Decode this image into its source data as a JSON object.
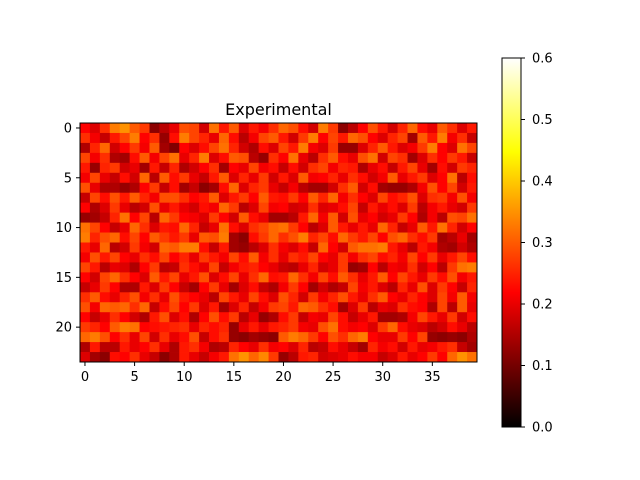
{
  "chart_data": {
    "type": "heatmap",
    "title": "Experimental",
    "rows": 24,
    "cols": 40,
    "x_ticks": [
      0,
      5,
      10,
      15,
      20,
      25,
      30,
      35
    ],
    "y_ticks": [
      0,
      5,
      10,
      15,
      20
    ],
    "colormap": "hot",
    "vmin": 0.0,
    "vmax": 0.6,
    "colorbar_ticks": [
      "0.0",
      "0.1",
      "0.2",
      "0.3",
      "0.4",
      "0.5",
      "0.6"
    ],
    "values": [
      [
        0.22,
        0.19,
        0.26,
        0.33,
        0.35,
        0.3,
        0.27,
        0.12,
        0.16,
        0.2,
        0.29,
        0.28,
        0.18,
        0.32,
        0.24,
        0.3,
        0.19,
        0.24,
        0.21,
        0.26,
        0.31,
        0.29,
        0.23,
        0.18,
        0.33,
        0.27,
        0.12,
        0.16,
        0.22,
        0.29,
        0.24,
        0.18,
        0.25,
        0.31,
        0.23,
        0.2,
        0.3,
        0.26,
        0.19,
        0.24
      ],
      [
        0.26,
        0.21,
        0.17,
        0.24,
        0.28,
        0.33,
        0.22,
        0.26,
        0.13,
        0.23,
        0.33,
        0.28,
        0.25,
        0.2,
        0.31,
        0.23,
        0.16,
        0.21,
        0.28,
        0.3,
        0.24,
        0.18,
        0.27,
        0.33,
        0.22,
        0.28,
        0.24,
        0.31,
        0.29,
        0.22,
        0.19,
        0.25,
        0.28,
        0.14,
        0.3,
        0.24,
        0.33,
        0.21,
        0.26,
        0.17
      ],
      [
        0.15,
        0.25,
        0.31,
        0.18,
        0.22,
        0.27,
        0.21,
        0.3,
        0.14,
        0.11,
        0.22,
        0.19,
        0.23,
        0.28,
        0.32,
        0.25,
        0.18,
        0.15,
        0.23,
        0.19,
        0.28,
        0.24,
        0.33,
        0.21,
        0.19,
        0.27,
        0.13,
        0.13,
        0.19,
        0.25,
        0.3,
        0.24,
        0.19,
        0.21,
        0.27,
        0.33,
        0.22,
        0.19,
        0.32,
        0.28
      ],
      [
        0.28,
        0.21,
        0.26,
        0.15,
        0.14,
        0.23,
        0.3,
        0.21,
        0.28,
        0.32,
        0.2,
        0.25,
        0.33,
        0.19,
        0.23,
        0.3,
        0.29,
        0.16,
        0.13,
        0.26,
        0.22,
        0.32,
        0.2,
        0.16,
        0.26,
        0.3,
        0.23,
        0.2,
        0.29,
        0.32,
        0.18,
        0.28,
        0.26,
        0.14,
        0.19,
        0.26,
        0.22,
        0.27,
        0.24,
        0.17
      ],
      [
        0.24,
        0.13,
        0.25,
        0.27,
        0.18,
        0.2,
        0.14,
        0.24,
        0.17,
        0.25,
        0.15,
        0.18,
        0.22,
        0.26,
        0.14,
        0.22,
        0.2,
        0.28,
        0.21,
        0.23,
        0.17,
        0.23,
        0.18,
        0.26,
        0.28,
        0.21,
        0.25,
        0.24,
        0.15,
        0.2,
        0.23,
        0.17,
        0.24,
        0.28,
        0.2,
        0.14,
        0.23,
        0.18,
        0.27,
        0.25
      ],
      [
        0.21,
        0.28,
        0.2,
        0.17,
        0.23,
        0.18,
        0.31,
        0.16,
        0.3,
        0.23,
        0.27,
        0.2,
        0.17,
        0.24,
        0.3,
        0.19,
        0.25,
        0.2,
        0.27,
        0.18,
        0.24,
        0.19,
        0.3,
        0.21,
        0.22,
        0.25,
        0.2,
        0.26,
        0.23,
        0.18,
        0.21,
        0.3,
        0.2,
        0.24,
        0.27,
        0.19,
        0.22,
        0.32,
        0.16,
        0.23
      ],
      [
        0.29,
        0.2,
        0.15,
        0.15,
        0.13,
        0.15,
        0.22,
        0.27,
        0.17,
        0.23,
        0.14,
        0.17,
        0.12,
        0.14,
        0.23,
        0.31,
        0.19,
        0.25,
        0.27,
        0.2,
        0.17,
        0.21,
        0.16,
        0.14,
        0.14,
        0.18,
        0.26,
        0.3,
        0.18,
        0.23,
        0.14,
        0.13,
        0.13,
        0.15,
        0.21,
        0.29,
        0.22,
        0.28,
        0.18,
        0.24
      ],
      [
        0.17,
        0.28,
        0.23,
        0.29,
        0.24,
        0.3,
        0.25,
        0.21,
        0.29,
        0.29,
        0.26,
        0.22,
        0.24,
        0.3,
        0.19,
        0.24,
        0.27,
        0.22,
        0.3,
        0.24,
        0.23,
        0.27,
        0.22,
        0.3,
        0.25,
        0.31,
        0.21,
        0.26,
        0.22,
        0.19,
        0.28,
        0.23,
        0.25,
        0.29,
        0.19,
        0.26,
        0.27,
        0.21,
        0.29,
        0.21
      ],
      [
        0.22,
        0.15,
        0.19,
        0.27,
        0.2,
        0.16,
        0.18,
        0.29,
        0.2,
        0.24,
        0.2,
        0.18,
        0.23,
        0.21,
        0.31,
        0.27,
        0.16,
        0.19,
        0.28,
        0.21,
        0.22,
        0.18,
        0.19,
        0.26,
        0.19,
        0.2,
        0.23,
        0.28,
        0.17,
        0.24,
        0.2,
        0.23,
        0.19,
        0.27,
        0.16,
        0.21,
        0.24,
        0.2,
        0.18,
        0.27
      ],
      [
        0.13,
        0.14,
        0.17,
        0.25,
        0.32,
        0.22,
        0.28,
        0.16,
        0.31,
        0.27,
        0.22,
        0.21,
        0.19,
        0.27,
        0.22,
        0.18,
        0.3,
        0.23,
        0.2,
        0.14,
        0.14,
        0.16,
        0.24,
        0.31,
        0.21,
        0.3,
        0.18,
        0.29,
        0.2,
        0.22,
        0.18,
        0.2,
        0.27,
        0.22,
        0.15,
        0.21,
        0.16,
        0.29,
        0.28,
        0.32
      ],
      [
        0.32,
        0.28,
        0.22,
        0.17,
        0.2,
        0.31,
        0.26,
        0.19,
        0.24,
        0.23,
        0.31,
        0.25,
        0.17,
        0.2,
        0.32,
        0.23,
        0.19,
        0.26,
        0.28,
        0.31,
        0.32,
        0.27,
        0.22,
        0.16,
        0.19,
        0.3,
        0.24,
        0.2,
        0.24,
        0.2,
        0.31,
        0.25,
        0.17,
        0.2,
        0.3,
        0.24,
        0.32,
        0.25,
        0.18,
        0.22
      ],
      [
        0.33,
        0.25,
        0.29,
        0.31,
        0.23,
        0.28,
        0.22,
        0.3,
        0.27,
        0.24,
        0.27,
        0.2,
        0.3,
        0.29,
        0.33,
        0.14,
        0.12,
        0.23,
        0.27,
        0.31,
        0.26,
        0.29,
        0.33,
        0.25,
        0.28,
        0.23,
        0.31,
        0.27,
        0.24,
        0.28,
        0.22,
        0.29,
        0.31,
        0.26,
        0.23,
        0.27,
        0.14,
        0.16,
        0.2,
        0.14
      ],
      [
        0.24,
        0.2,
        0.31,
        0.16,
        0.18,
        0.27,
        0.21,
        0.18,
        0.31,
        0.3,
        0.33,
        0.33,
        0.23,
        0.17,
        0.24,
        0.14,
        0.13,
        0.16,
        0.19,
        0.26,
        0.21,
        0.19,
        0.23,
        0.17,
        0.31,
        0.22,
        0.18,
        0.3,
        0.32,
        0.32,
        0.33,
        0.24,
        0.2,
        0.16,
        0.24,
        0.21,
        0.15,
        0.14,
        0.18,
        0.15
      ],
      [
        0.21,
        0.29,
        0.24,
        0.28,
        0.22,
        0.2,
        0.26,
        0.23,
        0.28,
        0.22,
        0.25,
        0.2,
        0.27,
        0.24,
        0.21,
        0.28,
        0.23,
        0.3,
        0.21,
        0.26,
        0.2,
        0.26,
        0.24,
        0.28,
        0.22,
        0.2,
        0.27,
        0.21,
        0.26,
        0.28,
        0.23,
        0.25,
        0.21,
        0.28,
        0.22,
        0.27,
        0.2,
        0.24,
        0.28,
        0.23
      ],
      [
        0.28,
        0.24,
        0.16,
        0.2,
        0.19,
        0.15,
        0.22,
        0.27,
        0.16,
        0.17,
        0.26,
        0.23,
        0.2,
        0.28,
        0.17,
        0.21,
        0.24,
        0.25,
        0.22,
        0.2,
        0.17,
        0.16,
        0.2,
        0.25,
        0.18,
        0.2,
        0.27,
        0.13,
        0.14,
        0.22,
        0.16,
        0.21,
        0.2,
        0.26,
        0.18,
        0.22,
        0.16,
        0.27,
        0.32,
        0.33
      ],
      [
        0.22,
        0.18,
        0.28,
        0.31,
        0.26,
        0.22,
        0.19,
        0.3,
        0.24,
        0.28,
        0.2,
        0.24,
        0.29,
        0.19,
        0.23,
        0.28,
        0.2,
        0.26,
        0.31,
        0.23,
        0.24,
        0.31,
        0.26,
        0.21,
        0.28,
        0.23,
        0.3,
        0.26,
        0.2,
        0.24,
        0.3,
        0.22,
        0.28,
        0.24,
        0.2,
        0.27,
        0.23,
        0.29,
        0.21,
        0.24
      ],
      [
        0.17,
        0.2,
        0.27,
        0.22,
        0.15,
        0.15,
        0.24,
        0.19,
        0.27,
        0.22,
        0.17,
        0.14,
        0.22,
        0.27,
        0.2,
        0.14,
        0.19,
        0.23,
        0.17,
        0.15,
        0.21,
        0.27,
        0.22,
        0.14,
        0.18,
        0.15,
        0.17,
        0.28,
        0.21,
        0.24,
        0.19,
        0.16,
        0.25,
        0.2,
        0.29,
        0.19,
        0.27,
        0.22,
        0.17,
        0.25
      ],
      [
        0.26,
        0.3,
        0.23,
        0.2,
        0.25,
        0.29,
        0.21,
        0.26,
        0.2,
        0.29,
        0.24,
        0.22,
        0.2,
        0.16,
        0.28,
        0.24,
        0.2,
        0.28,
        0.23,
        0.19,
        0.29,
        0.25,
        0.18,
        0.27,
        0.21,
        0.25,
        0.29,
        0.24,
        0.2,
        0.26,
        0.3,
        0.22,
        0.2,
        0.25,
        0.22,
        0.19,
        0.28,
        0.21,
        0.3,
        0.21
      ],
      [
        0.29,
        0.21,
        0.31,
        0.3,
        0.31,
        0.26,
        0.31,
        0.17,
        0.23,
        0.28,
        0.22,
        0.27,
        0.19,
        0.24,
        0.14,
        0.19,
        0.25,
        0.17,
        0.21,
        0.27,
        0.28,
        0.24,
        0.31,
        0.3,
        0.26,
        0.23,
        0.14,
        0.19,
        0.27,
        0.16,
        0.2,
        0.19,
        0.26,
        0.23,
        0.22,
        0.15,
        0.28,
        0.16,
        0.3,
        0.2
      ],
      [
        0.22,
        0.17,
        0.2,
        0.26,
        0.22,
        0.18,
        0.15,
        0.24,
        0.29,
        0.19,
        0.23,
        0.15,
        0.22,
        0.29,
        0.23,
        0.27,
        0.16,
        0.2,
        0.13,
        0.15,
        0.23,
        0.27,
        0.17,
        0.21,
        0.2,
        0.28,
        0.23,
        0.17,
        0.2,
        0.24,
        0.14,
        0.14,
        0.15,
        0.21,
        0.28,
        0.24,
        0.2,
        0.27,
        0.18,
        0.23
      ],
      [
        0.27,
        0.25,
        0.22,
        0.3,
        0.33,
        0.32,
        0.22,
        0.23,
        0.24,
        0.25,
        0.26,
        0.2,
        0.25,
        0.23,
        0.25,
        0.13,
        0.2,
        0.24,
        0.2,
        0.24,
        0.25,
        0.27,
        0.21,
        0.2,
        0.29,
        0.32,
        0.23,
        0.21,
        0.22,
        0.19,
        0.27,
        0.31,
        0.23,
        0.2,
        0.19,
        0.16,
        0.18,
        0.23,
        0.2,
        0.16
      ],
      [
        0.31,
        0.33,
        0.29,
        0.22,
        0.26,
        0.2,
        0.28,
        0.18,
        0.26,
        0.2,
        0.23,
        0.29,
        0.17,
        0.23,
        0.26,
        0.13,
        0.12,
        0.14,
        0.13,
        0.12,
        0.3,
        0.33,
        0.31,
        0.27,
        0.22,
        0.29,
        0.26,
        0.31,
        0.33,
        0.22,
        0.2,
        0.2,
        0.27,
        0.22,
        0.28,
        0.13,
        0.12,
        0.13,
        0.12,
        0.15
      ],
      [
        0.15,
        0.24,
        0.16,
        0.16,
        0.24,
        0.2,
        0.22,
        0.26,
        0.2,
        0.15,
        0.24,
        0.26,
        0.21,
        0.15,
        0.16,
        0.25,
        0.22,
        0.2,
        0.26,
        0.21,
        0.22,
        0.19,
        0.25,
        0.16,
        0.17,
        0.23,
        0.2,
        0.17,
        0.14,
        0.25,
        0.21,
        0.23,
        0.18,
        0.24,
        0.2,
        0.21,
        0.24,
        0.26,
        0.17,
        0.14
      ],
      [
        0.19,
        0.14,
        0.12,
        0.23,
        0.22,
        0.26,
        0.2,
        0.17,
        0.12,
        0.15,
        0.24,
        0.2,
        0.17,
        0.21,
        0.24,
        0.32,
        0.35,
        0.31,
        0.34,
        0.27,
        0.13,
        0.16,
        0.24,
        0.25,
        0.18,
        0.19,
        0.2,
        0.23,
        0.21,
        0.21,
        0.17,
        0.19,
        0.24,
        0.2,
        0.22,
        0.27,
        0.22,
        0.31,
        0.35,
        0.32
      ]
    ]
  }
}
